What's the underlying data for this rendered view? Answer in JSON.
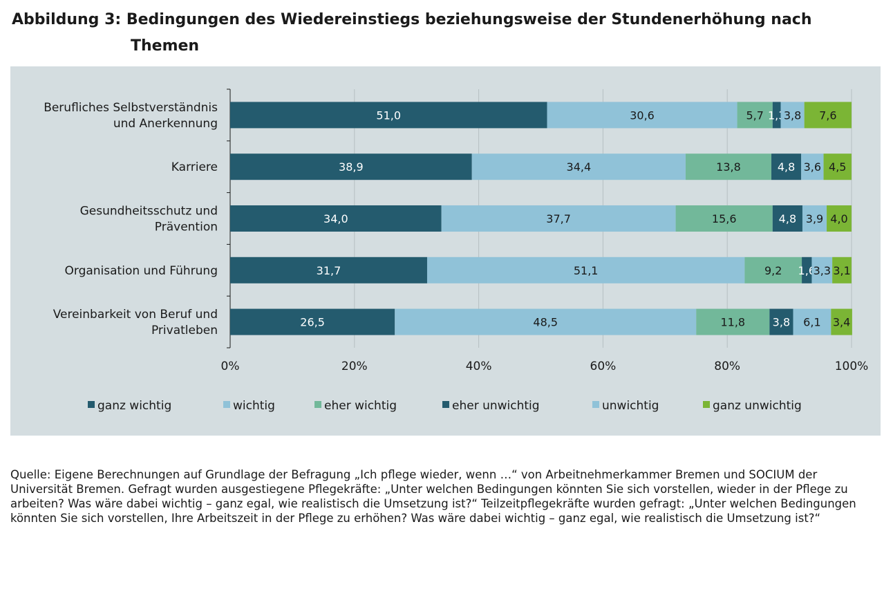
{
  "title": {
    "line1": "Abbildung 3: Bedingungen des Wiedereinstiegs beziehungsweise der Stundenerhöhung nach",
    "line2": "Themen"
  },
  "source": "Quelle: Eigene Berechnungen auf Grundlage der Befragung „Ich pflege wieder, wenn …“ von Arbeitnehmerkammer Bremen und SOCIUM der Universität Bremen. Gefragt wurden ausgestiegene Pflegekräfte: „Unter welchen Bedingungen könnten Sie sich vorstellen, wieder in der Pflege zu arbeiten? Was wäre dabei wichtig – ganz egal, wie realistisch die Umsetzung ist?“ Teilzeitpflegekräfte wurden gefragt: „Unter welchen Bedingungen könnten Sie sich vorstellen, Ihre Arbeitszeit in der Pflege zu erhöhen? Was wäre dabei wichtig – ganz egal, wie realistisch die Umsetzung ist?“",
  "chart_data": {
    "type": "bar",
    "orientation": "horizontal",
    "stacked": "percent",
    "categories": [
      [
        "Berufliches Selbstverständnis",
        "und Anerkennung"
      ],
      [
        "Karriere"
      ],
      [
        "Gesundheitsschutz und",
        "Prävention"
      ],
      [
        "Organisation und Führung"
      ],
      [
        "Vereinbarkeit von Beruf und",
        "Privatleben"
      ]
    ],
    "series": [
      {
        "name": "ganz wichtig",
        "color": "#245b6e",
        "label_color": "#ffffff",
        "values": [
          51.0,
          38.9,
          34.0,
          31.7,
          26.5
        ],
        "labels": [
          "51,0",
          "38,9",
          "34,0",
          "31,7",
          "26,5"
        ]
      },
      {
        "name": "wichtig",
        "color": "#90c2d8",
        "label_color": "#1a1a1a",
        "values": [
          30.6,
          34.4,
          37.7,
          51.1,
          48.5
        ],
        "labels": [
          "30,6",
          "34,4",
          "37,7",
          "51,1",
          "48,5"
        ]
      },
      {
        "name": "eher wichtig",
        "color": "#72b89a",
        "label_color": "#1a1a1a",
        "values": [
          5.7,
          13.8,
          15.6,
          9.2,
          11.8
        ],
        "labels": [
          "5,7",
          "13,8",
          "15,6",
          "9,2",
          "11,8"
        ]
      },
      {
        "name": "eher unwichtig",
        "color": "#245b6e",
        "label_color": "#ffffff",
        "values": [
          1.3,
          4.8,
          4.8,
          1.6,
          3.8
        ],
        "labels": [
          "1,3",
          "4,8",
          "4,8",
          "1,6",
          "3,8"
        ]
      },
      {
        "name": "unwichtig",
        "color": "#90c2d8",
        "label_color": "#1a1a1a",
        "values": [
          3.8,
          3.6,
          3.9,
          3.3,
          6.1
        ],
        "labels": [
          "3,8",
          "3,6",
          "3,9",
          "3,3",
          "6,1"
        ]
      },
      {
        "name": "ganz unwichtig",
        "color": "#7bb535",
        "label_color": "#1a1a1a",
        "values": [
          7.6,
          4.5,
          4.0,
          3.1,
          3.4
        ],
        "labels": [
          "7,6",
          "4,5",
          "4,0",
          "3,1",
          "3,4"
        ]
      }
    ],
    "x_ticks": [
      "0%",
      "20%",
      "40%",
      "60%",
      "80%",
      "100%"
    ],
    "xlim": [
      0,
      100
    ],
    "grid": "vertical",
    "legend_position": "bottom",
    "background_color": "#d4dde0"
  }
}
